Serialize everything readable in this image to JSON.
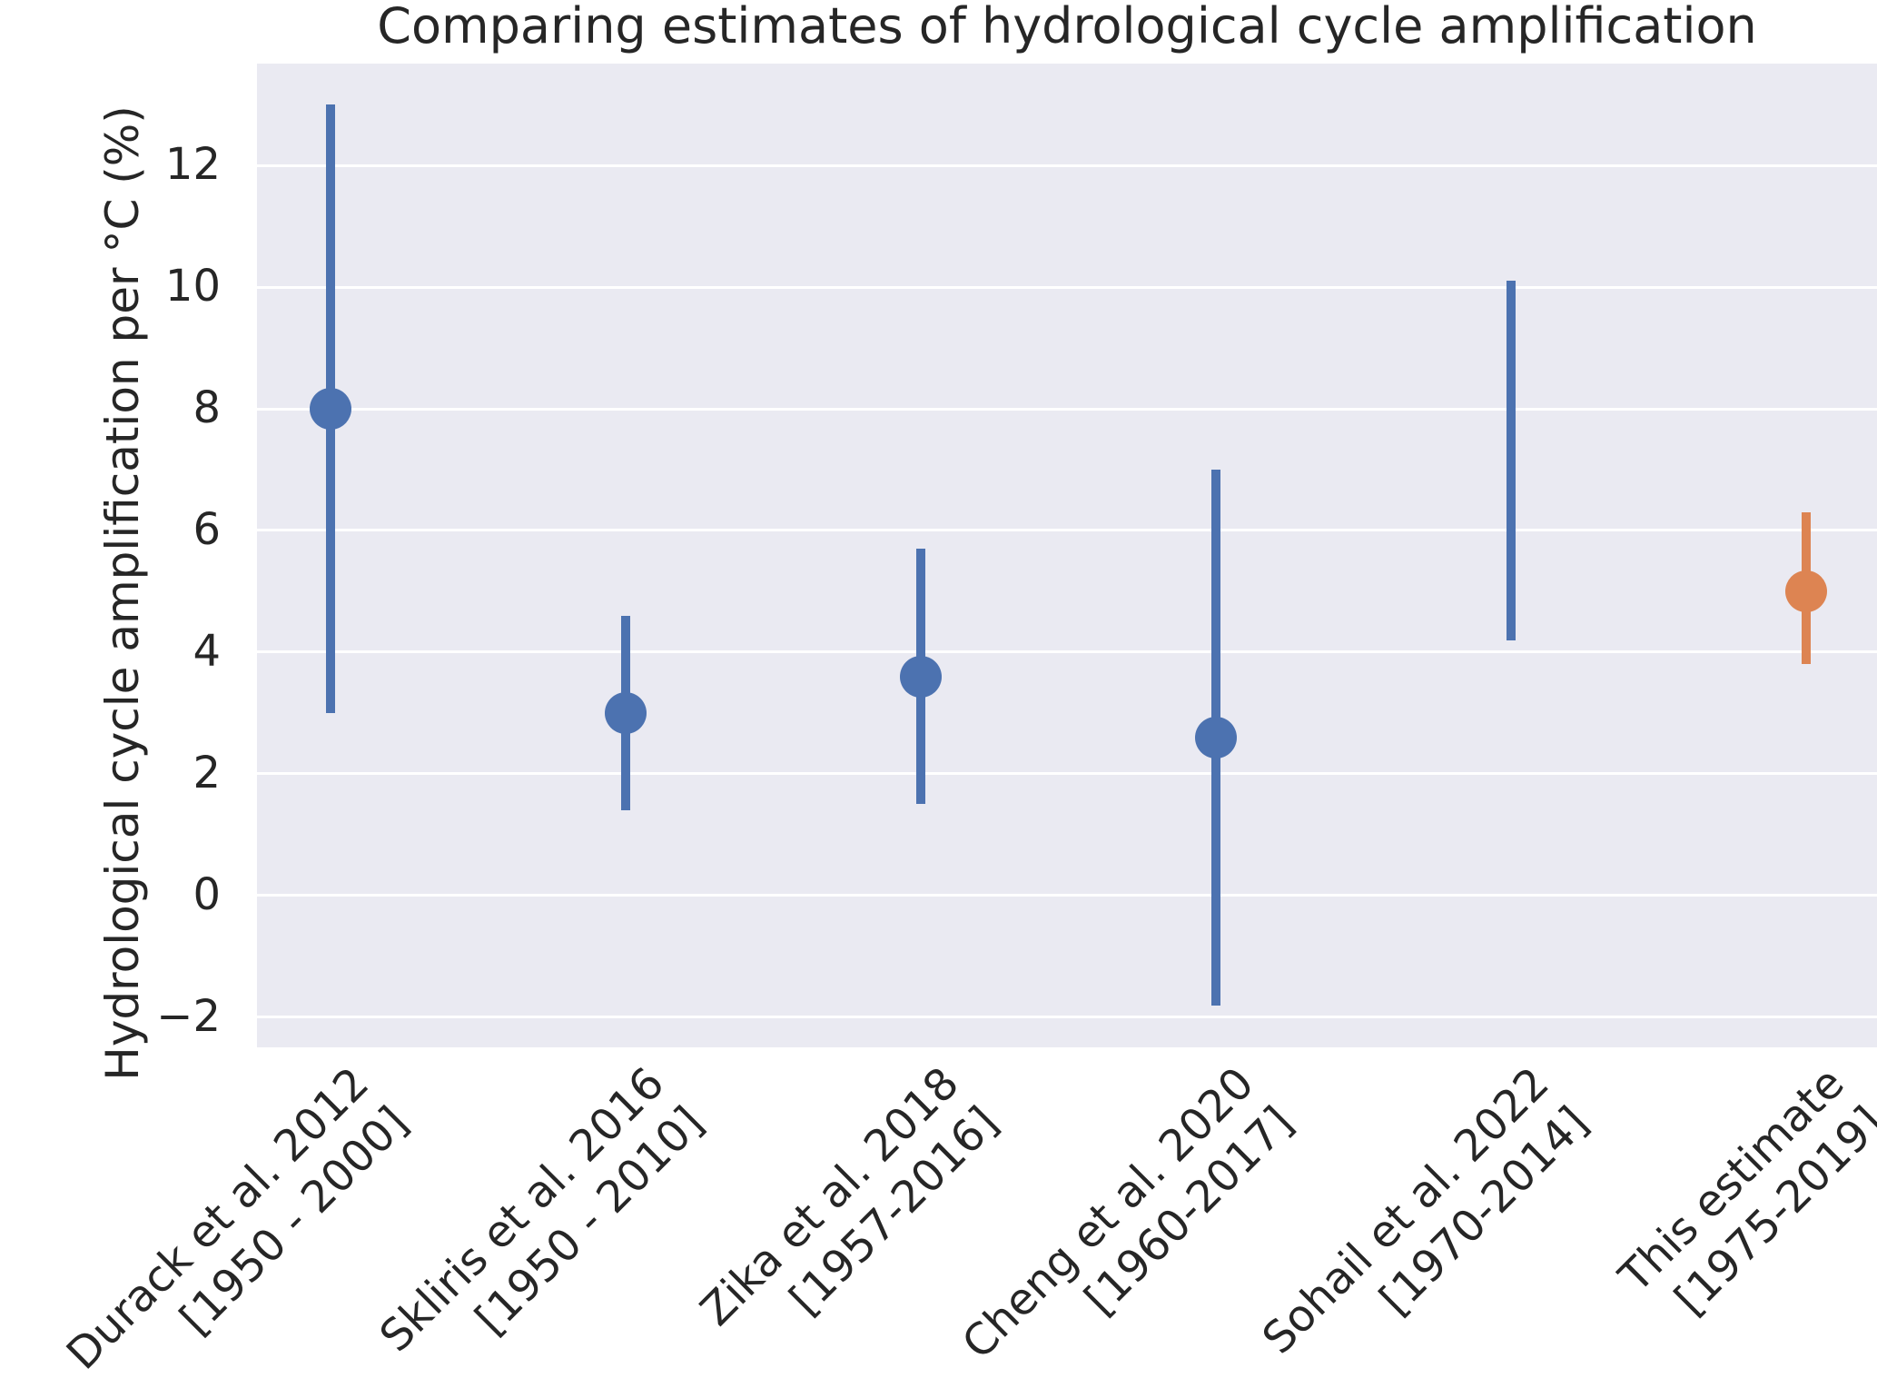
{
  "figure_title": "Comparing estimates of hydrological cycle amplification",
  "colors": {
    "background": "#FFFFFF",
    "plot_background": "#EAEAF2",
    "gridline": "#FFFFFF",
    "text": "#262626",
    "blue": "#4C72B0",
    "orange": "#DD8452"
  },
  "chart_data": {
    "type": "scatter",
    "subtype": "errorbar",
    "title": "Comparing estimates of hydrological cycle amplification",
    "xlabel": "",
    "ylabel": "Hydrological cycle amplification per °C (%)",
    "grid": true,
    "legend": false,
    "yticks": [
      12,
      10,
      8,
      6,
      4,
      2,
      0,
      -2
    ],
    "ylim": [
      -2.49,
      13.67
    ],
    "categories": [
      "Durack et al. 2012\n[1950 - 2000]",
      "Skliris et al. 2016\n[1950 - 2010]",
      "Zika et al. 2018\n[1957-2016]",
      "Cheng et al. 2020\n[1960-2017]",
      "Sohail et al. 2022\n[1970-2014]",
      "This estimate\n[1975-2019]"
    ],
    "series": [
      {
        "name": "Durack et al. 2012",
        "period": "[1950 - 2000]",
        "center": 8.0,
        "lo": 3.0,
        "hi": 13.0,
        "color": "#4C72B0",
        "has_marker": true
      },
      {
        "name": "Skliris et al. 2016",
        "period": "[1950 - 2010]",
        "center": 3.0,
        "lo": 1.4,
        "hi": 4.6,
        "color": "#4C72B0",
        "has_marker": true
      },
      {
        "name": "Zika et al. 2018",
        "period": "[1957-2016]",
        "center": 3.6,
        "lo": 1.5,
        "hi": 5.7,
        "color": "#4C72B0",
        "has_marker": true
      },
      {
        "name": "Cheng et al. 2020",
        "period": "[1960-2017]",
        "center": 2.6,
        "lo": -1.8,
        "hi": 7.0,
        "color": "#4C72B0",
        "has_marker": true
      },
      {
        "name": "Sohail et al. 2022",
        "period": "[1970-2014]",
        "center": null,
        "lo": 4.2,
        "hi": 10.1,
        "color": "#4C72B0",
        "has_marker": false
      },
      {
        "name": "This estimate",
        "period": "[1975-2019]",
        "center": 5.0,
        "lo": 3.8,
        "hi": 6.3,
        "color": "#DD8452",
        "has_marker": true
      }
    ]
  }
}
